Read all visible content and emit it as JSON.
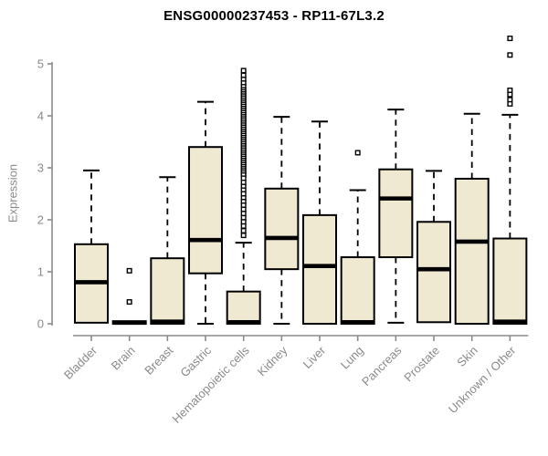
{
  "chart_data": {
    "type": "boxplot",
    "title": "ENSG00000237453 - RP11-67L3.2",
    "ylabel": "Expression",
    "xlabel": "",
    "ylim": [
      -0.25,
      5.6
    ],
    "yticks": [
      0,
      1,
      2,
      3,
      4,
      5
    ],
    "grid": false,
    "legend": "none",
    "categories": [
      "Bladder",
      "Brain",
      "Breast",
      "Gastric",
      "Hematopoietic cells",
      "Kidney",
      "Liver",
      "Lung",
      "Pancreas",
      "Prostate",
      "Skin",
      "Unknown / Other"
    ],
    "boxes": [
      {
        "category": "Bladder",
        "q1": 0.02,
        "median": 0.8,
        "q3": 1.53,
        "whisker_low": null,
        "whisker_high": 2.95,
        "outliers": []
      },
      {
        "category": "Brain",
        "q1": 0.0,
        "median": 0.02,
        "q3": 0.05,
        "whisker_low": null,
        "whisker_high": null,
        "outliers": [
          1.02,
          0.42
        ]
      },
      {
        "category": "Breast",
        "q1": 0.0,
        "median": 0.04,
        "q3": 1.26,
        "whisker_low": null,
        "whisker_high": 2.82,
        "outliers": []
      },
      {
        "category": "Gastric",
        "q1": 0.97,
        "median": 1.61,
        "q3": 3.4,
        "whisker_low": 0.0,
        "whisker_high": 4.27,
        "outliers": []
      },
      {
        "category": "Hematopoietic cells",
        "q1": 0.0,
        "median": 0.03,
        "q3": 0.62,
        "whisker_low": null,
        "whisker_high": 1.56,
        "outliers": [
          4.87,
          4.78,
          4.7,
          4.63,
          4.56,
          4.5,
          4.46,
          4.42,
          4.38,
          4.34,
          4.3,
          4.26,
          4.22,
          4.18,
          4.14,
          4.1,
          4.06,
          4.02,
          3.98,
          3.94,
          3.9,
          3.86,
          3.82,
          3.78,
          3.74,
          3.7,
          3.66,
          3.62,
          3.58,
          3.54,
          3.5,
          3.46,
          3.42,
          3.38,
          3.34,
          3.3,
          3.26,
          3.22,
          3.18,
          3.14,
          3.1,
          3.06,
          3.02,
          2.98,
          2.94,
          2.9,
          2.86,
          2.8,
          2.72,
          2.64,
          2.57,
          2.5,
          2.42,
          2.35,
          2.28,
          2.2,
          2.12,
          2.04,
          1.96,
          1.88,
          1.79,
          1.7
        ]
      },
      {
        "category": "Kidney",
        "q1": 1.05,
        "median": 1.65,
        "q3": 2.6,
        "whisker_low": 0.0,
        "whisker_high": 3.98,
        "outliers": []
      },
      {
        "category": "Liver",
        "q1": 0.0,
        "median": 1.11,
        "q3": 2.09,
        "whisker_low": null,
        "whisker_high": 3.89,
        "outliers": []
      },
      {
        "category": "Lung",
        "q1": 0.0,
        "median": 0.03,
        "q3": 1.28,
        "whisker_low": null,
        "whisker_high": 2.57,
        "outliers": [
          3.29
        ]
      },
      {
        "category": "Pancreas",
        "q1": 1.28,
        "median": 2.41,
        "q3": 2.97,
        "whisker_low": 0.02,
        "whisker_high": 4.12,
        "outliers": []
      },
      {
        "category": "Prostate",
        "q1": 0.03,
        "median": 1.05,
        "q3": 1.96,
        "whisker_low": null,
        "whisker_high": 2.94,
        "outliers": []
      },
      {
        "category": "Skin",
        "q1": 0.0,
        "median": 1.58,
        "q3": 2.79,
        "whisker_low": null,
        "whisker_high": 4.04,
        "outliers": []
      },
      {
        "category": "Unknown / Other",
        "q1": 0.0,
        "median": 0.04,
        "q3": 1.64,
        "whisker_low": null,
        "whisker_high": 4.02,
        "outliers": [
          5.49,
          5.17,
          4.49,
          4.41,
          4.31,
          4.23
        ]
      }
    ],
    "colors": {
      "box_fill": "#f0e9d1",
      "box_stroke": "#000000",
      "median": "#000000",
      "whisker": "#000000",
      "outlier": "#000000",
      "axis": "#8a8a8a",
      "tick_label": "#8a8a8a",
      "title": "#000000",
      "background": "#ffffff"
    }
  }
}
